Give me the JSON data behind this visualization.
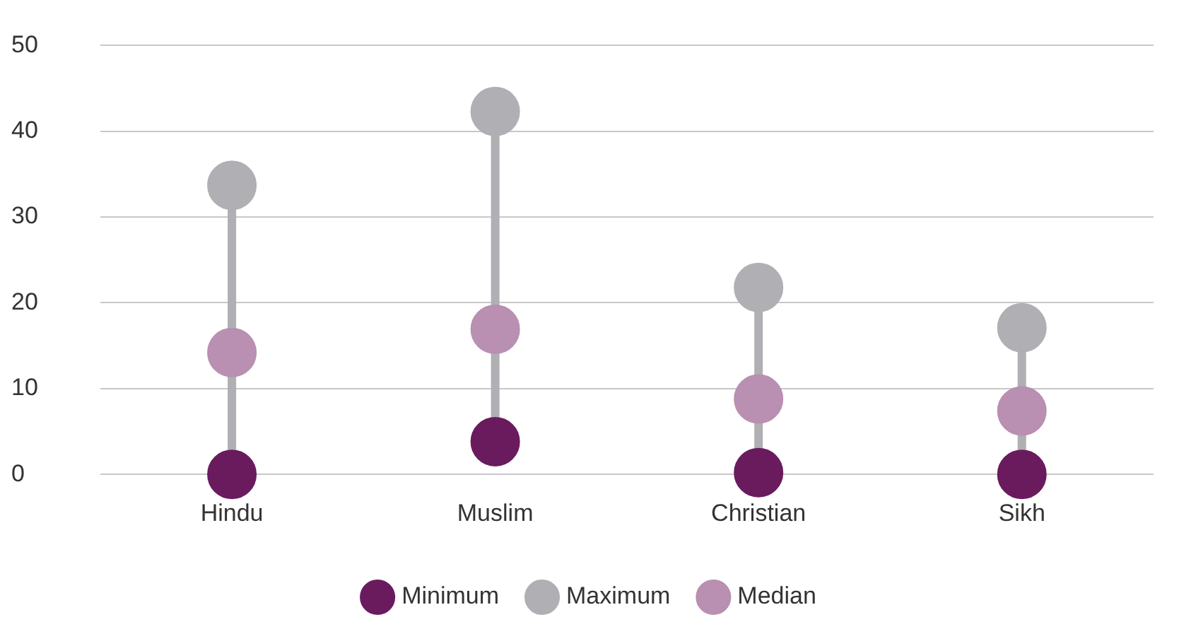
{
  "chart_data": {
    "type": "scatter",
    "categories": [
      "Hindu",
      "Muslim",
      "Christian",
      "Sikh"
    ],
    "series": [
      {
        "name": "Minimum",
        "color": "#6a1b5e",
        "values": [
          0,
          3.8,
          0.2,
          0
        ]
      },
      {
        "name": "Maximum",
        "color": "#b0afb3",
        "values": [
          33.7,
          42.3,
          21.8,
          17.1
        ]
      },
      {
        "name": "Median",
        "color": "#b98fb2",
        "values": [
          14.2,
          16.9,
          8.8,
          7.4
        ]
      }
    ],
    "ylim": [
      0,
      50
    ],
    "yticks": [
      0,
      10,
      20,
      30,
      40,
      50
    ],
    "grid": "y",
    "legend": "bottom",
    "marker": "circle"
  }
}
